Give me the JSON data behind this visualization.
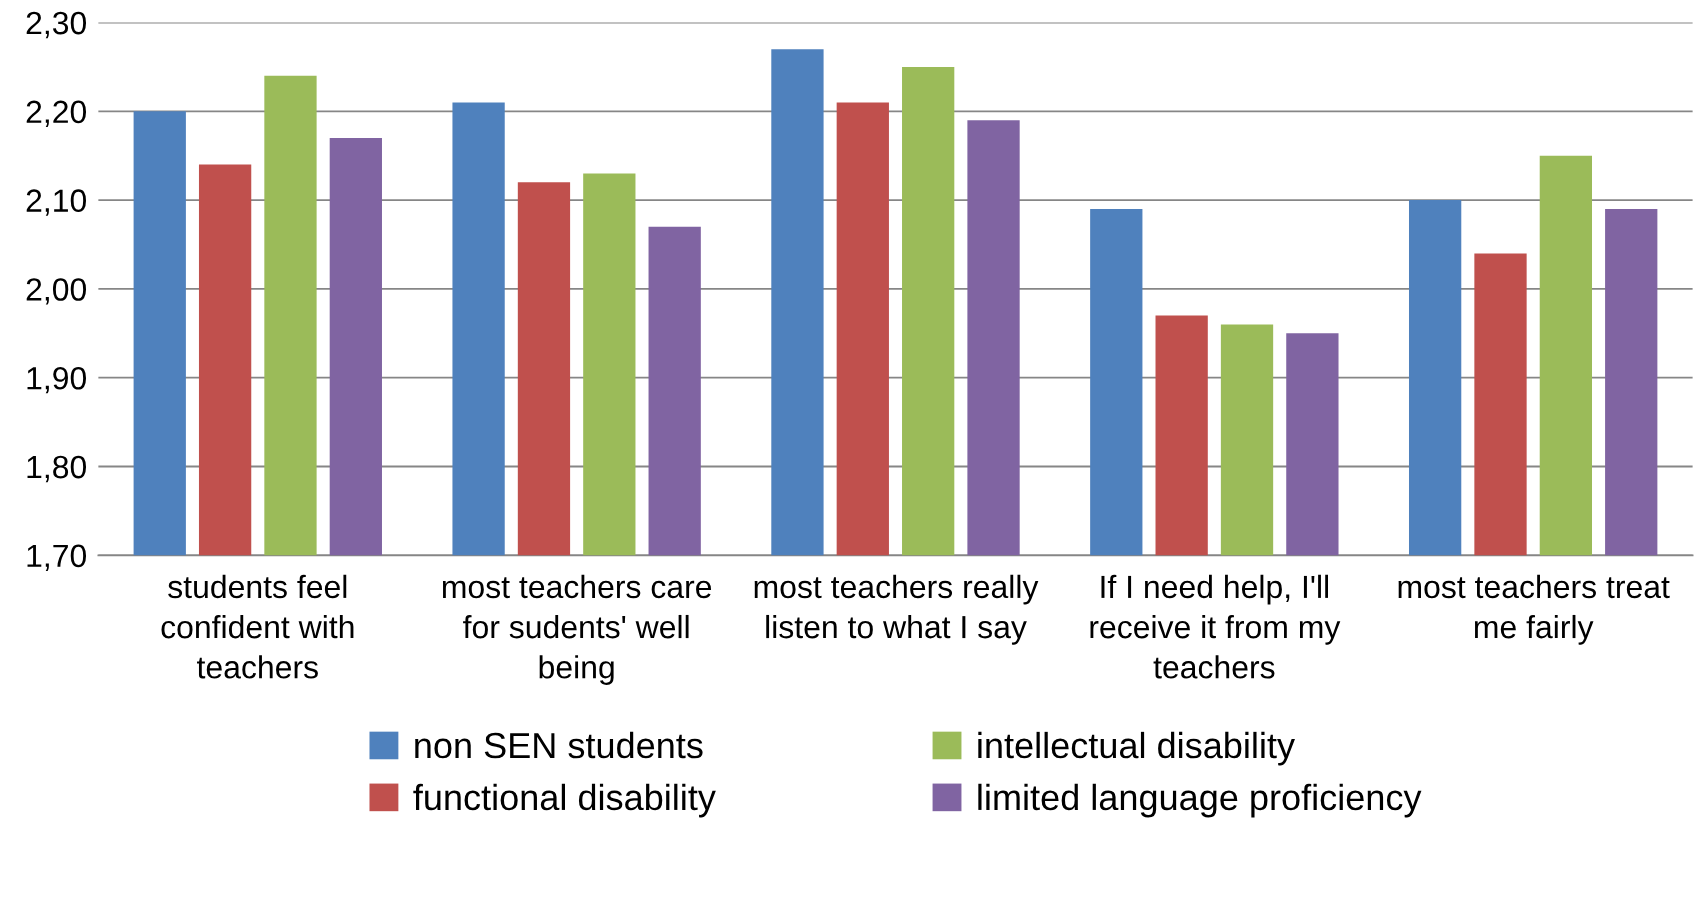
{
  "chart_data": {
    "type": "bar",
    "categories": [
      "students feel\nconfident with\nteachers",
      "most teachers care\nfor sudents' well\nbeing",
      "most teachers really\nlisten to what I say",
      "If I need help, I'll\nreceive it from my\nteachers",
      "most teachers treat\nme fairly"
    ],
    "series": [
      {
        "name": "non SEN students",
        "color": "#4f81bd",
        "values": [
          2.2,
          2.21,
          2.27,
          2.09,
          2.1
        ]
      },
      {
        "name": "functional disability",
        "color": "#c0504d",
        "values": [
          2.14,
          2.12,
          2.21,
          1.97,
          2.04
        ]
      },
      {
        "name": "intellectual disability",
        "color": "#9bbb59",
        "values": [
          2.24,
          2.13,
          2.25,
          1.96,
          2.15
        ]
      },
      {
        "name": "limited language proficiency",
        "color": "#8064a2",
        "values": [
          2.17,
          2.07,
          2.19,
          1.95,
          2.09
        ]
      }
    ],
    "ylim": [
      1.7,
      2.3
    ],
    "yticks": [
      {
        "value": 1.7,
        "label": "1,70"
      },
      {
        "value": 1.8,
        "label": "1,80"
      },
      {
        "value": 1.9,
        "label": "1,90"
      },
      {
        "value": 2.0,
        "label": "2,00"
      },
      {
        "value": 2.1,
        "label": "2,10"
      },
      {
        "value": 2.2,
        "label": "2,20"
      },
      {
        "value": 2.3,
        "label": "2,30"
      }
    ],
    "grid": "y",
    "legend": "bottom"
  }
}
